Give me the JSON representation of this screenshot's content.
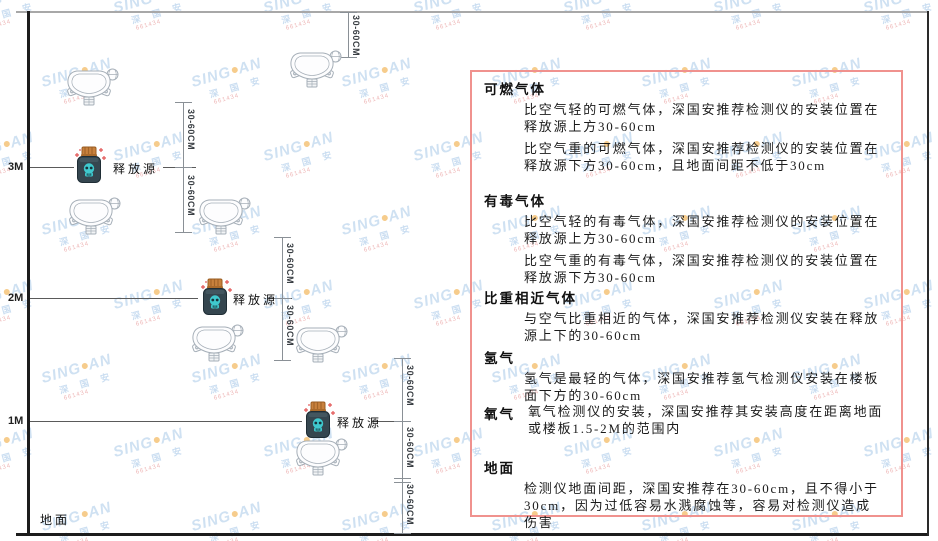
{
  "watermark": {
    "brand_left": "SING",
    "brand_right": "AN",
    "brand_cn": "深 国 安",
    "code": "661434"
  },
  "diagram": {
    "dim_label": "30-60CM",
    "source_label": "释放源",
    "ground_label": "地面",
    "levels": [
      {
        "label": "3M"
      },
      {
        "label": "2M"
      },
      {
        "label": "1M"
      }
    ]
  },
  "panel": {
    "sections": [
      {
        "heading": "可燃气体",
        "paragraphs": [
          "比空气轻的可燃气体，深国安推荐检测仪的安装位置在释放源上方30-60cm",
          "比空气重的可燃气体，深国安推荐检测仪的安装位置在释放源下方30-60cm，且地面间距不低于30cm"
        ]
      },
      {
        "heading": "有毒气体",
        "paragraphs": [
          "比空气轻的有毒气体，深国安推荐检测仪的安装位置在释放源上方30-60cm",
          "比空气重的有毒气体，深国安推荐检测仪的安装位置在释放源下方30-60cm"
        ]
      },
      {
        "heading": "比重相近气体",
        "paragraphs": [
          "与空气比重相近的气体，深国安推荐检测仪安装在释放源上下的30-60cm"
        ]
      },
      {
        "heading": "氢气",
        "paragraphs": [
          "氢气是最轻的气体，深国安推荐氢气检测仪安装在楼板面下方的30-60cm"
        ]
      },
      {
        "heading": "氧气",
        "paragraphs": [
          "氧气检测仪的安装，深国安推荐其安装高度在距离地面或楼板1.5-2M的范围内"
        ]
      },
      {
        "heading": "地面",
        "paragraphs": [
          "检测仪地面间距，深国安推荐在30-60cm，且不得小于30cm，因为过低容易水溅腐蚀等，容易对检测仪造成伤害"
        ]
      }
    ]
  },
  "colors": {
    "panel_border": "#f0928e",
    "watermark_blue": "#a9c9e8",
    "watermark_accent": "#f0a32f",
    "watermark_code_red": "#e07a7a",
    "source_jar": "#35464f",
    "source_cap": "#c8813d",
    "skull_teal": "#3fc9ce",
    "sparkle_red": "#e25555",
    "detector_gray": "#a6afb8"
  }
}
